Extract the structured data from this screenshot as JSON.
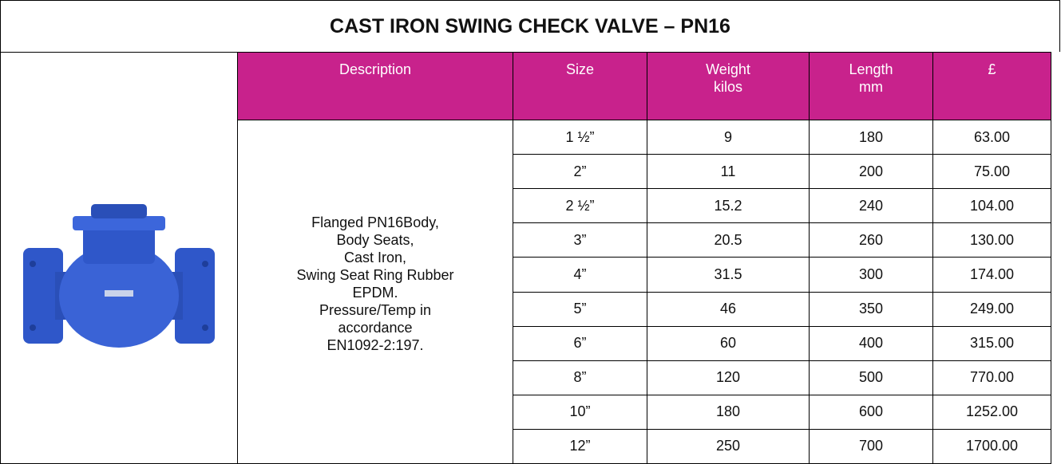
{
  "title": "CAST IRON SWING CHECK VALVE – PN16",
  "table": {
    "header": [
      "Description",
      "Size",
      "Weight\nkilos",
      "Length\nmm",
      "£"
    ],
    "description": "Flanged PN16Body,\nBody Seats,\nCast Iron,\nSwing Seat Ring Rubber\nEPDM.\nPressure/Temp in\naccordance\nEN1092-2:197.",
    "rows": [
      [
        "1 ½”",
        "9",
        "180",
        "63.00"
      ],
      [
        "2”",
        "11",
        "200",
        "75.00"
      ],
      [
        "2 ½”",
        "15.2",
        "240",
        "104.00"
      ],
      [
        "3”",
        "20.5",
        "260",
        "130.00"
      ],
      [
        "4”",
        "31.5",
        "300",
        "174.00"
      ],
      [
        "5”",
        "46",
        "350",
        "249.00"
      ],
      [
        "6”",
        "60",
        "400",
        "315.00"
      ],
      [
        "8”",
        "120",
        "500",
        "770.00"
      ],
      [
        "10”",
        "180",
        "600",
        "1252.00"
      ],
      [
        "12”",
        "250",
        "700",
        "1700.00"
      ]
    ]
  }
}
